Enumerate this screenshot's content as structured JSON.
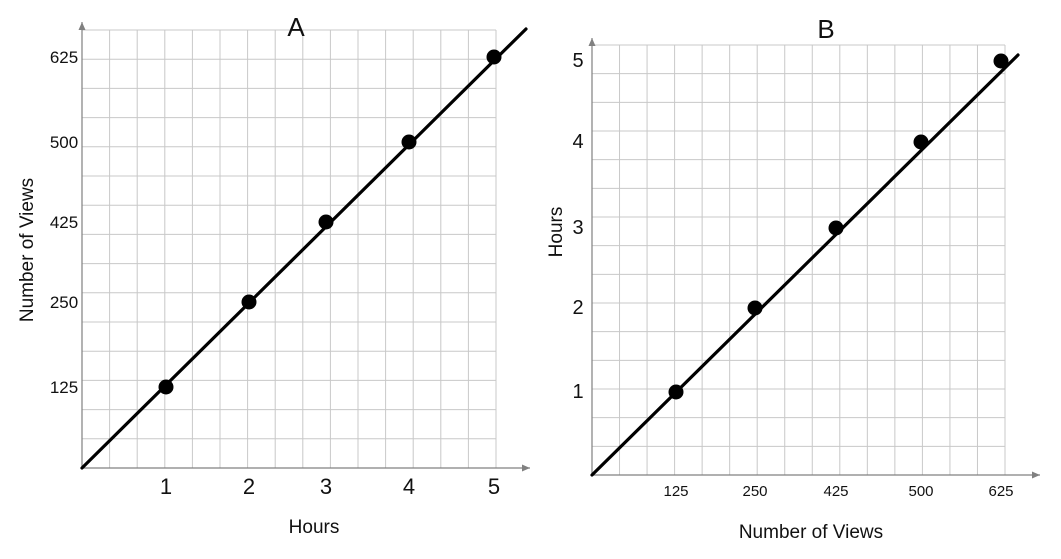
{
  "chart_data": [
    {
      "type": "scatter",
      "title": "A",
      "xlabel": "Hours",
      "ylabel": "Number of Views",
      "x_ticks": [
        "1",
        "2",
        "3",
        "4",
        "5"
      ],
      "y_ticks": [
        "125",
        "250",
        "425",
        "500",
        "625"
      ],
      "series": [
        {
          "points": [
            {
              "x": 1,
              "y": 125
            },
            {
              "x": 2,
              "y": 250
            },
            {
              "x": 3,
              "y": 425
            },
            {
              "x": 4,
              "y": 500
            },
            {
              "x": 5,
              "y": 625
            }
          ]
        }
      ],
      "line_through_origin": true,
      "grid": true
    },
    {
      "type": "scatter",
      "title": "B",
      "xlabel": "Number of Views",
      "ylabel": "Hours",
      "x_ticks": [
        "125",
        "250",
        "425",
        "500",
        "625"
      ],
      "y_ticks": [
        "1",
        "2",
        "3",
        "4",
        "5"
      ],
      "series": [
        {
          "points": [
            {
              "x": 125,
              "y": 1
            },
            {
              "x": 250,
              "y": 2
            },
            {
              "x": 425,
              "y": 3
            },
            {
              "x": 500,
              "y": 4
            },
            {
              "x": 625,
              "y": 5
            }
          ]
        }
      ],
      "line_through_origin": true,
      "grid": true
    }
  ]
}
